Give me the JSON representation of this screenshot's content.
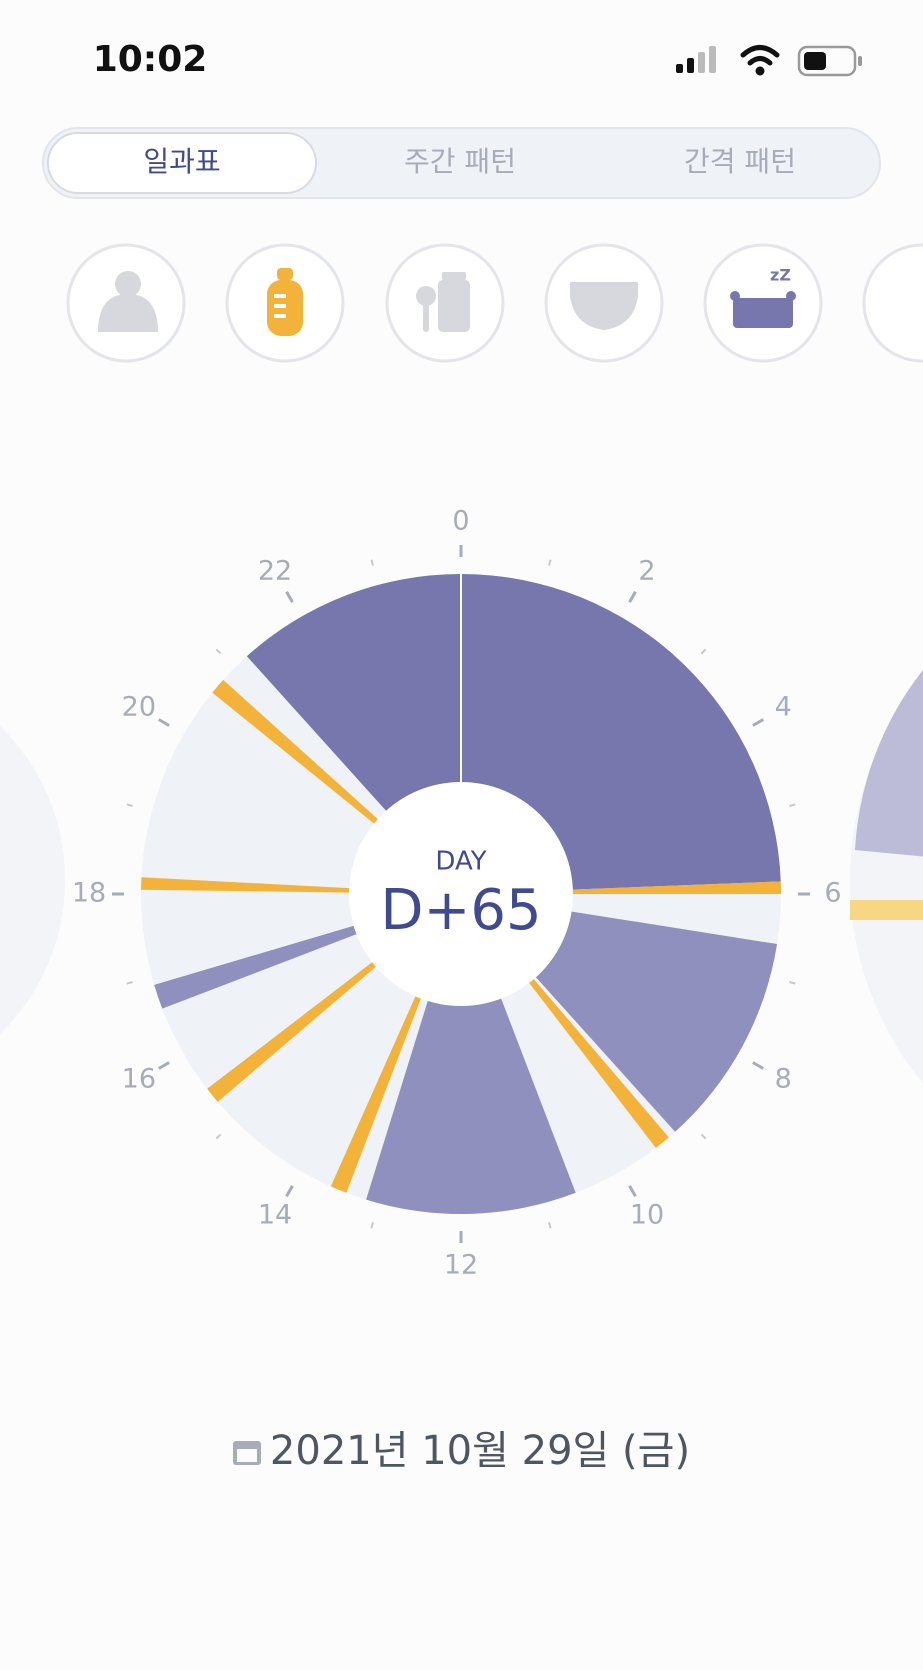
{
  "status_bar": {
    "time": "10:02"
  },
  "tabs": [
    "일과표",
    "주간 패턴",
    "간격 패턴"
  ],
  "clock": {
    "hours": [
      0,
      2,
      4,
      6,
      8,
      10,
      12,
      14,
      16,
      18,
      20,
      22
    ],
    "segments": [
      {
        "start": 0,
        "end": 5.85,
        "color": "#7776ad"
      },
      {
        "start": 5.85,
        "end": 6.0,
        "color": "#f3b23a"
      },
      {
        "start": 6.6,
        "end": 9.2,
        "color": "#9090bf"
      },
      {
        "start": 9.3,
        "end": 9.5,
        "color": "#f3b23a"
      },
      {
        "start": 10.6,
        "end": 13.15,
        "color": "#9090bf"
      },
      {
        "start": 13.4,
        "end": 13.6,
        "color": "#f3b23a"
      },
      {
        "start": 15.3,
        "end": 15.5,
        "color": "#f3b23a"
      },
      {
        "start": 16.6,
        "end": 16.9,
        "color": "#9090bf"
      },
      {
        "start": 18.05,
        "end": 18.2,
        "color": "#f3b23a"
      },
      {
        "start": 20.6,
        "end": 20.8,
        "color": "#f3b23a"
      },
      {
        "start": 21.2,
        "end": 24,
        "color": "#7776ad"
      }
    ],
    "center_label": "DAY",
    "center_value": "D+65"
  },
  "date": "2021년 10월 29일 (금)"
}
